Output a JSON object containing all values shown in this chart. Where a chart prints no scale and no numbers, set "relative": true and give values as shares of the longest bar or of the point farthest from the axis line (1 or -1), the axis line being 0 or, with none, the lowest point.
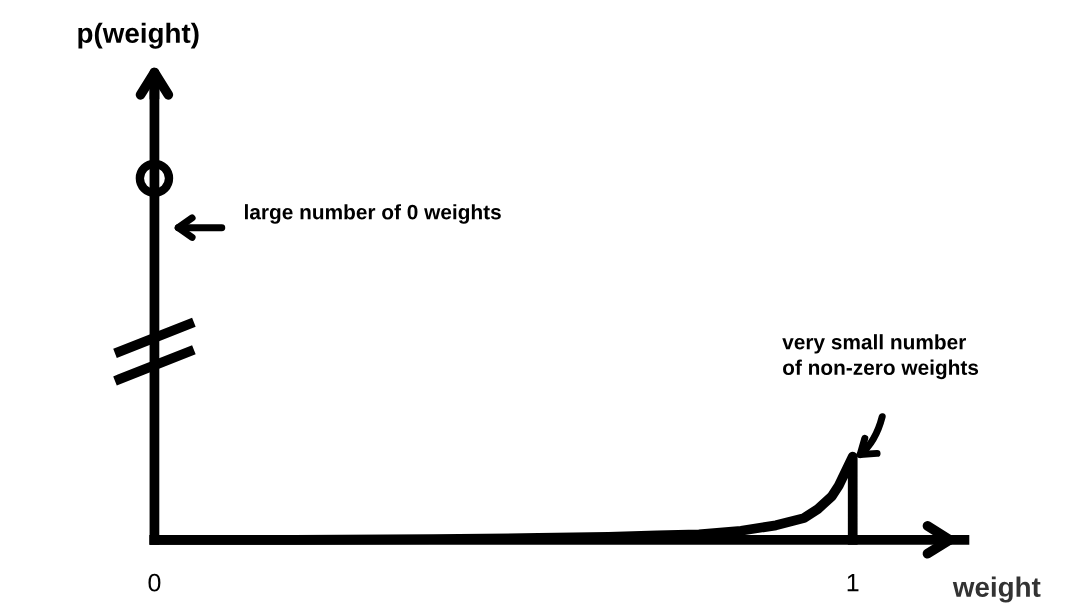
{
  "chart_data": {
    "type": "line",
    "xlabel": "weight",
    "ylabel": "p(weight)",
    "relative": true,
    "xlim": [
      0,
      1.16
    ],
    "xticks": [
      0,
      1
    ],
    "series": [
      {
        "color": "#000000",
        "x": [
          0,
          0.2,
          0.4,
          0.55,
          0.65,
          0.72,
          0.78,
          0.84,
          0.89,
          0.93,
          0.95,
          0.97,
          0.98,
          0.99,
          1.0,
          1.0
        ],
        "values": [
          0,
          0,
          0.002,
          0.005,
          0.008,
          0.012,
          0.015,
          0.025,
          0.04,
          0.06,
          0.085,
          0.12,
          0.15,
          0.19,
          0.23,
          0
        ]
      },
      {
        "type": "scatter",
        "color": "#000000",
        "marker": "circle",
        "x": [
          0
        ],
        "values": [
          1
        ]
      }
    ],
    "annotations": [
      "large number of 0 weights",
      "very small number\nof non-zero weights"
    ],
    "grid": false,
    "legend": false
  }
}
